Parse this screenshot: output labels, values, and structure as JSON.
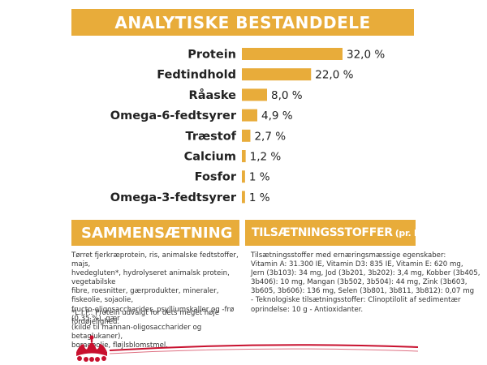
{
  "title": "ANALYTISKE BESTANDDELE",
  "chart_data": {
    "type": "bar",
    "orientation": "horizontal",
    "title": "ANALYTISKE BESTANDDELE",
    "categories": [
      "Protein",
      "Fedtindhold",
      "Råaske",
      "Omega-6-fedtsyrer",
      "Træstof",
      "Calcium",
      "Fosfor",
      "Omega-3-fedtsyrer"
    ],
    "values": [
      32.0,
      22.0,
      8.0,
      4.9,
      2.7,
      1.2,
      1.0,
      1.0
    ],
    "value_labels": [
      "32,0 %",
      "22,0 %",
      "8,0 %",
      "4,9 %",
      "2,7 %",
      "1,2 %",
      "1 %",
      "1 %"
    ],
    "xlim": [
      0,
      32
    ],
    "grid": false,
    "legend": "none",
    "bar_color": "#e8ac3a"
  },
  "composition": {
    "heading": "SAMMENSÆTNING",
    "lines": [
      "Tørret fjerkræprotein, ris, animalske fedtstoffer, majs,",
      "hvedegluten*, hydrolyseret animalsk protein, vegetabilske",
      "fibre, roesnitter, gærprodukter, mineraler, fiskeolie, sojaolie,",
      "fructo-oligosaccharider, psylliumskaller og -frø (0,35 %), gær",
      "(kilde til mannan-oligosaccharider og betaglukaner),",
      "boragoolie, fløjlsblomstmel."
    ],
    "note": "*L.I.P.: Protein udvalgt for dets meget høje fordøjelighed."
  },
  "additives": {
    "heading": "TILSÆTNINGSSTOFFER",
    "heading_unit": "(pr. kg)",
    "lines": [
      "Tilsætningsstoffer med ernæringsmæssige egenskaber:",
      "Vitamin A: 31.300 IE, Vitamin D3: 835 IE, Vitamin E: 620 mg,",
      "Jern (3b103): 34 mg, Jod (3b201, 3b202): 3,4 mg, Kobber (3b405,",
      "3b406): 10 mg, Mangan (3b502, 3b504): 44 mg, Zink (3b603,",
      "3b605, 3b606): 136 mg, Selen (3b801, 3b811, 3b812): 0,07 mg",
      "- Teknologiske tilsætningsstoffer: Clinoptilolit af sedimentær",
      "oprindelse: 10 g - Antioxidanter."
    ]
  },
  "colors": {
    "accent": "#e8ac3a",
    "brand_red": "#c8102e"
  },
  "logo": {
    "icon": "royal-canin-crown-logo"
  }
}
